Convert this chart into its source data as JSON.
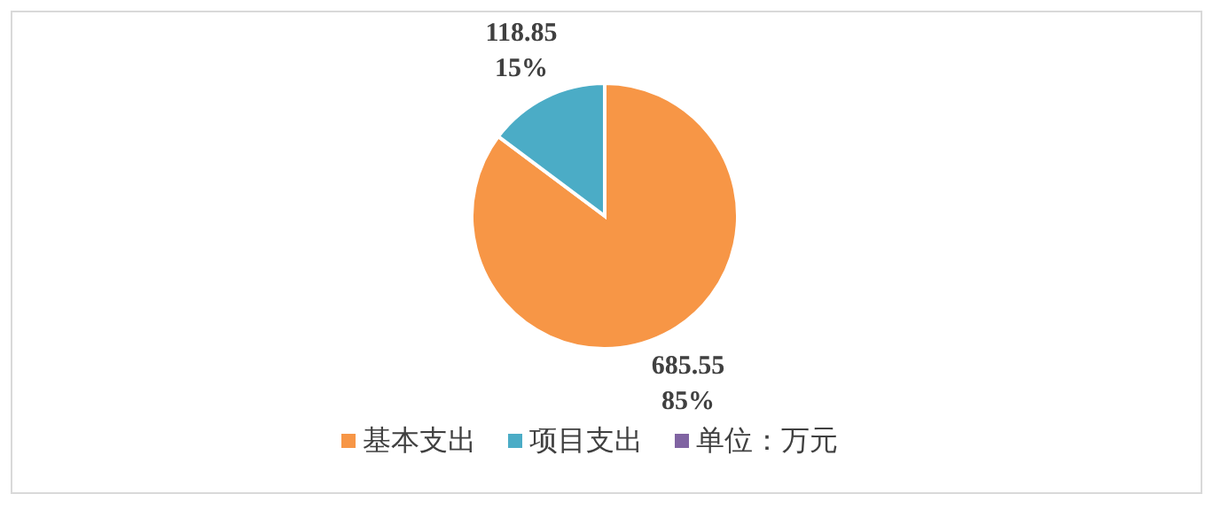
{
  "chart_data": {
    "type": "pie",
    "categories": [
      "基本支出",
      "项目支出",
      "单位：万元"
    ],
    "values": [
      685.55,
      118.85,
      0
    ],
    "colors": [
      "#f79646",
      "#4bacc6",
      "#8064a2"
    ],
    "value_labels": [
      "685.55\n85%",
      "118.85\n15%",
      null
    ],
    "legend": "bottom"
  }
}
